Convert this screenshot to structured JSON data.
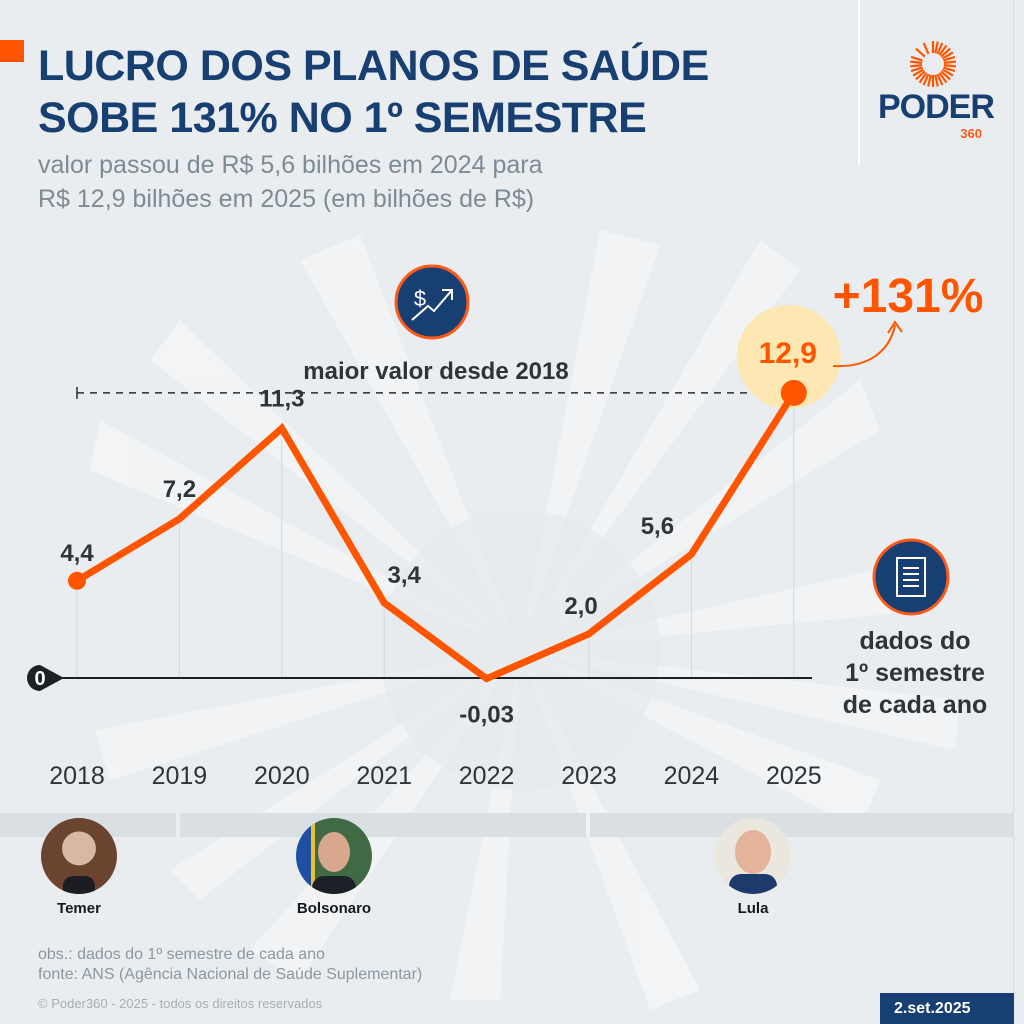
{
  "header": {
    "title_line1": "LUCRO DOS PLANOS DE SAÚDE",
    "title_line2": "SOBE 131% NO 1º SEMESTRE",
    "subtitle_line1": "valor passou de R$ 5,6 bilhões em 2024 para",
    "subtitle_line2": "R$ 12,9 bilhões em 2025 (em bilhões de R$)"
  },
  "logo": {
    "name": "PODER",
    "number": "360",
    "icon": "sun-rays-icon"
  },
  "colors": {
    "accent": "#ff5500",
    "navy": "#173f72",
    "line": "#ff5500",
    "highlight": "#fde8b3",
    "text": "#2f3439",
    "background": "#eaedef"
  },
  "chart_data": {
    "type": "line",
    "title": "LUCRO DOS PLANOS DE SAÚDE SOBE 131% NO 1º SEMESTRE",
    "ylabel": "em bilhões de R$",
    "xlabel": "",
    "categories": [
      "2018",
      "2019",
      "2020",
      "2021",
      "2022",
      "2023",
      "2024",
      "2025"
    ],
    "series": [
      {
        "name": "Lucro dos planos de saúde (1º semestre)",
        "values": [
          4.4,
          7.2,
          11.3,
          3.4,
          -0.03,
          2.0,
          5.6,
          12.9
        ],
        "labels": [
          "4,4",
          "7,2",
          "11,3",
          "3,4",
          "-0,03",
          "2,0",
          "5,6",
          "12,9"
        ]
      }
    ],
    "ylim": [
      -1,
      13.5
    ],
    "zero_label": "0",
    "grid": "vertical lines at each year",
    "reference_line": {
      "value": 12.9,
      "label": "maior valor desde 2018",
      "style": "dashed"
    },
    "annotations": [
      {
        "text": "+131%",
        "target": "2025",
        "position": "top-right"
      },
      {
        "text": "dados do",
        "position": "right"
      },
      {
        "text": "1º semestre",
        "position": "right"
      },
      {
        "text": "de cada ano",
        "position": "right"
      }
    ]
  },
  "icons": {
    "money_up": "dollar-trend-up-icon",
    "document": "document-icon"
  },
  "presidents": [
    {
      "name": "Temer",
      "period": "2018"
    },
    {
      "name": "Bolsonaro",
      "period": "2019–2022"
    },
    {
      "name": "Lula",
      "period": "2023–2025"
    }
  ],
  "footer": {
    "obs": "obs.: dados do 1º semestre de cada ano",
    "source": "fonte: ANS (Agência Nacional de Saúde Suplementar)",
    "copyright": "© Poder360 - 2025 - todos os direitos reservados",
    "date": "2.set.2025"
  }
}
